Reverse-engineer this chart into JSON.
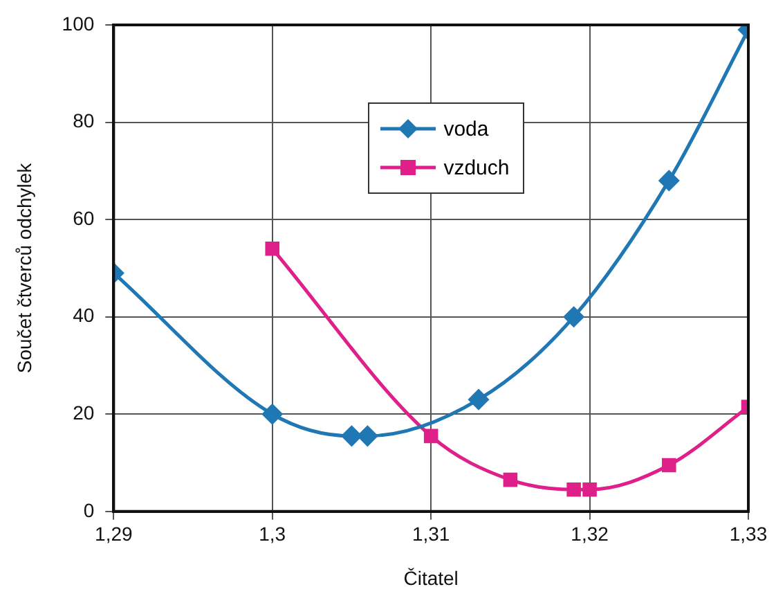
{
  "chart_data": {
    "type": "line",
    "xlabel": "Čitatel",
    "ylabel": "Součet čtverců odchylek",
    "xlim": [
      1.29,
      1.33
    ],
    "xticks": [
      {
        "value": 1.29,
        "label": "1,29"
      },
      {
        "value": 1.3,
        "label": "1,3"
      },
      {
        "value": 1.31,
        "label": "1,31"
      },
      {
        "value": 1.32,
        "label": "1,32"
      },
      {
        "value": 1.33,
        "label": "1,33"
      }
    ],
    "ylim": [
      0,
      100
    ],
    "yticks": [
      0,
      20,
      40,
      60,
      80,
      100
    ],
    "grid": true,
    "legend": "top",
    "line_style": "solid",
    "series": [
      {
        "name": "voda",
        "color": "#1f78b4",
        "marker": "diamond",
        "x": [
          1.29,
          1.3,
          1.305,
          1.306,
          1.313,
          1.319,
          1.325,
          1.33
        ],
        "values": [
          49,
          20,
          15.5,
          15.5,
          23,
          40,
          68,
          99
        ]
      },
      {
        "name": "vzduch",
        "color": "#e0208a",
        "marker": "square",
        "x": [
          1.3,
          1.31,
          1.315,
          1.319,
          1.32,
          1.325,
          1.33
        ],
        "values": [
          54,
          15.5,
          6.5,
          4.5,
          4.5,
          9.5,
          21.5
        ]
      }
    ]
  }
}
